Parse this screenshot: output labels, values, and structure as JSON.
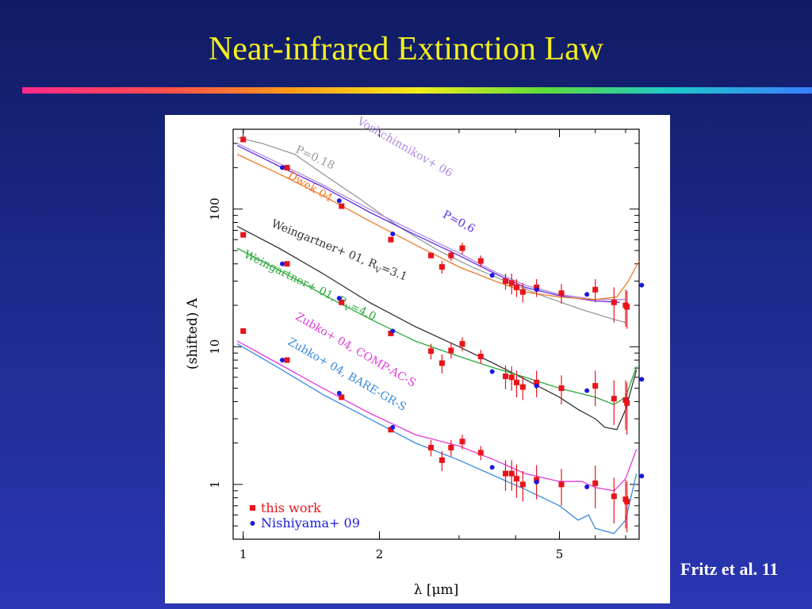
{
  "slide": {
    "title": "Near-infrared Extinction Law",
    "credit": "Fritz et al. 11"
  },
  "colors": {
    "title": "#f4ef1b",
    "this_work": "#e8141b",
    "nishiyama": "#1a1ae0"
  },
  "chart_data": {
    "type": "scatter",
    "xlabel": "λ [μm]",
    "ylabel": "(shifted) A",
    "xscale": "log",
    "yscale": "log",
    "xlim": [
      0.95,
      7.5
    ],
    "ylim": [
      0.4,
      380
    ],
    "xticks": [
      {
        "value": 1,
        "label": "1"
      },
      {
        "value": 2,
        "label": "2"
      },
      {
        "value": 5,
        "label": "5"
      }
    ],
    "yticks": [
      {
        "value": 1,
        "label": "1"
      },
      {
        "value": 10,
        "label": "10"
      },
      {
        "value": 100,
        "label": "100"
      }
    ],
    "legend": {
      "placement": "bottom-left",
      "entries": [
        {
          "label": "this work",
          "marker": "square",
          "color": "#e8141b"
        },
        {
          "label": "Nishiyama+ 09",
          "marker": "circle",
          "color": "#1a1ae0"
        }
      ]
    },
    "curves": [
      {
        "label": "P=0.18",
        "color": "#9a9a9a",
        "points": [
          [
            0.97,
            330
          ],
          [
            1.1,
            300
          ],
          [
            1.3,
            250
          ],
          [
            1.5,
            180
          ],
          [
            1.8,
            120
          ],
          [
            2.2,
            75
          ],
          [
            2.7,
            50
          ],
          [
            3.2,
            38
          ],
          [
            3.8,
            30
          ],
          [
            4.5,
            24
          ],
          [
            5.5,
            19
          ],
          [
            6.5,
            16
          ],
          [
            7.0,
            15
          ]
        ]
      },
      {
        "label": "Voshchinnikov+ 06",
        "color": "#b18be0",
        "points": [
          [
            0.97,
            300
          ],
          [
            1.2,
            215
          ],
          [
            1.5,
            150
          ],
          [
            1.9,
            100
          ],
          [
            2.4,
            68
          ],
          [
            3.0,
            48
          ],
          [
            3.6,
            35
          ],
          [
            4.2,
            28
          ],
          [
            5.0,
            24
          ],
          [
            6.0,
            22
          ],
          [
            7.0,
            22
          ]
        ]
      },
      {
        "label": "P=0.6",
        "color": "#5b2be8",
        "points": [
          [
            0.97,
            290
          ],
          [
            1.2,
            205
          ],
          [
            1.5,
            145
          ],
          [
            1.9,
            95
          ],
          [
            2.4,
            65
          ],
          [
            3.0,
            46
          ],
          [
            3.6,
            34
          ],
          [
            4.2,
            27
          ],
          [
            5.0,
            23.5
          ],
          [
            6.0,
            21.5
          ],
          [
            6.8,
            21
          ]
        ]
      },
      {
        "label": "Dwek 04",
        "color": "#f07a2a",
        "points": [
          [
            0.97,
            250
          ],
          [
            1.2,
            180
          ],
          [
            1.5,
            125
          ],
          [
            1.9,
            82
          ],
          [
            2.4,
            55
          ],
          [
            3.0,
            38
          ],
          [
            3.6,
            30
          ],
          [
            4.2,
            25
          ],
          [
            5.0,
            23
          ],
          [
            6.0,
            22
          ],
          [
            6.7,
            23
          ],
          [
            7.1,
            30
          ],
          [
            7.5,
            42
          ]
        ]
      },
      {
        "label": "Weingartner+ 01, R_V=3.1",
        "color": "#333333",
        "points": [
          [
            0.97,
            75
          ],
          [
            1.2,
            52
          ],
          [
            1.5,
            34
          ],
          [
            1.9,
            21
          ],
          [
            2.4,
            14
          ],
          [
            3.0,
            10
          ],
          [
            3.6,
            7.5
          ],
          [
            4.2,
            5.8
          ],
          [
            5.0,
            4.3
          ],
          [
            5.5,
            3.5
          ],
          [
            6.0,
            3.0
          ],
          [
            6.3,
            2.6
          ],
          [
            6.7,
            2.5
          ],
          [
            7.0,
            3.5
          ],
          [
            7.4,
            6.8
          ]
        ]
      },
      {
        "label": "Weingartner+ 01, R_V=4.0",
        "color": "#2aa83a",
        "points": [
          [
            0.97,
            52
          ],
          [
            1.2,
            36
          ],
          [
            1.5,
            24
          ],
          [
            1.9,
            16
          ],
          [
            2.4,
            11
          ],
          [
            3.0,
            8.5
          ],
          [
            3.6,
            7.0
          ],
          [
            4.2,
            6.0
          ],
          [
            5.0,
            5.0
          ],
          [
            6.0,
            4.3
          ],
          [
            6.6,
            3.8
          ],
          [
            7.0,
            4.3
          ],
          [
            7.4,
            7.2
          ]
        ]
      },
      {
        "label": "Zubko+ 04, COMP-AC-S",
        "color": "#e23ad8",
        "points": [
          [
            0.97,
            11
          ],
          [
            1.2,
            7.5
          ],
          [
            1.5,
            5.0
          ],
          [
            1.9,
            3.3
          ],
          [
            2.4,
            2.3
          ],
          [
            3.0,
            1.9
          ],
          [
            3.6,
            1.5
          ],
          [
            4.2,
            1.2
          ],
          [
            5.0,
            1.05
          ],
          [
            5.6,
            1.05
          ],
          [
            6.0,
            0.95
          ],
          [
            6.6,
            0.9
          ],
          [
            7.0,
            1.1
          ],
          [
            7.4,
            1.8
          ]
        ]
      },
      {
        "label": "Zubko+ 04, BARE-GR-S",
        "color": "#3a8ae0",
        "points": [
          [
            0.97,
            10.5
          ],
          [
            1.2,
            7.0
          ],
          [
            1.5,
            4.5
          ],
          [
            1.9,
            3.0
          ],
          [
            2.4,
            2.0
          ],
          [
            3.0,
            1.5
          ],
          [
            3.6,
            1.15
          ],
          [
            4.2,
            0.92
          ],
          [
            5.0,
            0.7
          ],
          [
            5.5,
            0.55
          ],
          [
            5.8,
            0.6
          ],
          [
            6.0,
            0.48
          ],
          [
            6.6,
            0.44
          ],
          [
            7.0,
            0.55
          ],
          [
            7.4,
            1.2
          ]
        ]
      }
    ],
    "curve_labels": [
      {
        "text": "P=0.18",
        "color": "#9a9a9a",
        "at": [
          1.3,
          260
        ],
        "angle": 25
      },
      {
        "text": "Voshchinnikov+ 06",
        "color": "#b18be0",
        "at": [
          1.78,
          420
        ],
        "angle": 30
      },
      {
        "text": "P=0.6",
        "color": "#5b2be8",
        "at": [
          2.75,
          88
        ],
        "angle": 28
      },
      {
        "text": "Dwek 04",
        "color": "#f07a2a",
        "at": [
          1.25,
          170
        ],
        "angle": 30
      },
      {
        "text": "Weingartner+ 01, R",
        "sub": "V",
        "tail": "=3.1",
        "color": "#333333",
        "at": [
          1.15,
          75
        ],
        "angle": 22
      },
      {
        "text": "Weingartner+ 01, R",
        "sub": "V",
        "tail": "=4.0",
        "color": "#2aa83a",
        "at": [
          1.0,
          45
        ],
        "angle": 26
      },
      {
        "text": "Zubko+ 04, COMP-AC-S",
        "color": "#e23ad8",
        "at": [
          1.3,
          16
        ],
        "angle": 30
      },
      {
        "text": "Zubko+ 04, BARE-GR-S",
        "color": "#3a8ae0",
        "at": [
          1.25,
          10.5
        ],
        "angle": 30
      }
    ],
    "series": [
      {
        "name": "this work",
        "marker": "square",
        "color": "#e8141b",
        "points": [
          {
            "x": 1.0,
            "y": 320
          },
          {
            "x": 1.25,
            "y": 200
          },
          {
            "x": 1.65,
            "y": 105
          },
          {
            "x": 2.12,
            "y": 60
          },
          {
            "x": 2.6,
            "y": 46
          },
          {
            "x": 2.75,
            "y": 38,
            "err": 4
          },
          {
            "x": 2.88,
            "y": 46,
            "err": 4
          },
          {
            "x": 3.05,
            "y": 52,
            "err": 5
          },
          {
            "x": 3.35,
            "y": 42,
            "err": 4
          },
          {
            "x": 3.8,
            "y": 30,
            "err": 4
          },
          {
            "x": 3.92,
            "y": 29,
            "err": 5
          },
          {
            "x": 4.02,
            "y": 27,
            "err": 4
          },
          {
            "x": 4.15,
            "y": 25,
            "err": 4
          },
          {
            "x": 4.45,
            "y": 27,
            "err": 4
          },
          {
            "x": 5.05,
            "y": 24.5,
            "err": 4
          },
          {
            "x": 6.0,
            "y": 26,
            "err": 5
          },
          {
            "x": 6.6,
            "y": 21,
            "err": 6
          },
          {
            "x": 7.0,
            "y": 20,
            "err": 6
          },
          {
            "x": 7.05,
            "y": 19.5,
            "err": 6
          },
          {
            "x": 1.0,
            "y": 65
          },
          {
            "x": 1.25,
            "y": 40
          },
          {
            "x": 1.65,
            "y": 21
          },
          {
            "x": 2.12,
            "y": 12.5
          },
          {
            "x": 2.6,
            "y": 9.3,
            "err": 1.2
          },
          {
            "x": 2.75,
            "y": 7.6,
            "err": 1.2
          },
          {
            "x": 2.88,
            "y": 9.4,
            "err": 1.2
          },
          {
            "x": 3.05,
            "y": 10.5,
            "err": 1.2
          },
          {
            "x": 3.35,
            "y": 8.5,
            "err": 1.0
          },
          {
            "x": 3.8,
            "y": 6.1,
            "err": 1.2
          },
          {
            "x": 3.92,
            "y": 6.0,
            "err": 1.2
          },
          {
            "x": 4.02,
            "y": 5.5,
            "err": 1.2
          },
          {
            "x": 4.15,
            "y": 5.1,
            "err": 1.0
          },
          {
            "x": 4.45,
            "y": 5.5,
            "err": 1.2
          },
          {
            "x": 5.05,
            "y": 5.0,
            "err": 1.2
          },
          {
            "x": 6.0,
            "y": 5.2,
            "err": 1.5
          },
          {
            "x": 6.6,
            "y": 4.2,
            "err": 1.5
          },
          {
            "x": 7.0,
            "y": 4.1,
            "err": 1.6
          },
          {
            "x": 7.05,
            "y": 3.9,
            "err": 1.6
          },
          {
            "x": 1.0,
            "y": 13
          },
          {
            "x": 1.25,
            "y": 8
          },
          {
            "x": 1.65,
            "y": 4.3
          },
          {
            "x": 2.12,
            "y": 2.5
          },
          {
            "x": 2.6,
            "y": 1.85,
            "err": 0.25
          },
          {
            "x": 2.75,
            "y": 1.5,
            "err": 0.25
          },
          {
            "x": 2.88,
            "y": 1.85,
            "err": 0.25
          },
          {
            "x": 3.05,
            "y": 2.05,
            "err": 0.25
          },
          {
            "x": 3.35,
            "y": 1.7,
            "err": 0.2
          },
          {
            "x": 3.8,
            "y": 1.2,
            "err": 0.3
          },
          {
            "x": 3.92,
            "y": 1.2,
            "err": 0.3
          },
          {
            "x": 4.02,
            "y": 1.1,
            "err": 0.3
          },
          {
            "x": 4.15,
            "y": 1.0,
            "err": 0.25
          },
          {
            "x": 4.45,
            "y": 1.08,
            "err": 0.3
          },
          {
            "x": 5.05,
            "y": 1.0,
            "err": 0.3
          },
          {
            "x": 6.0,
            "y": 1.02,
            "err": 0.35
          },
          {
            "x": 6.6,
            "y": 0.82,
            "err": 0.3
          },
          {
            "x": 7.0,
            "y": 0.78,
            "err": 0.3
          },
          {
            "x": 7.05,
            "y": 0.75,
            "err": 0.3
          }
        ]
      },
      {
        "name": "Nishiyama+ 09",
        "marker": "circle",
        "color": "#1a1ae0",
        "points": [
          {
            "x": 1.22,
            "y": 200
          },
          {
            "x": 1.63,
            "y": 115
          },
          {
            "x": 2.14,
            "y": 66
          },
          {
            "x": 3.55,
            "y": 33
          },
          {
            "x": 4.45,
            "y": 26
          },
          {
            "x": 5.75,
            "y": 24
          },
          {
            "x": 7.6,
            "y": 28
          },
          {
            "x": 1.22,
            "y": 40
          },
          {
            "x": 1.63,
            "y": 22.5
          },
          {
            "x": 2.14,
            "y": 13
          },
          {
            "x": 3.55,
            "y": 6.6
          },
          {
            "x": 4.45,
            "y": 5.2
          },
          {
            "x": 5.75,
            "y": 4.8
          },
          {
            "x": 7.6,
            "y": 5.8
          },
          {
            "x": 1.22,
            "y": 8
          },
          {
            "x": 1.63,
            "y": 4.6
          },
          {
            "x": 2.14,
            "y": 2.6
          },
          {
            "x": 3.55,
            "y": 1.33
          },
          {
            "x": 4.45,
            "y": 1.04
          },
          {
            "x": 5.75,
            "y": 0.96
          },
          {
            "x": 7.6,
            "y": 1.15
          }
        ]
      }
    ]
  }
}
